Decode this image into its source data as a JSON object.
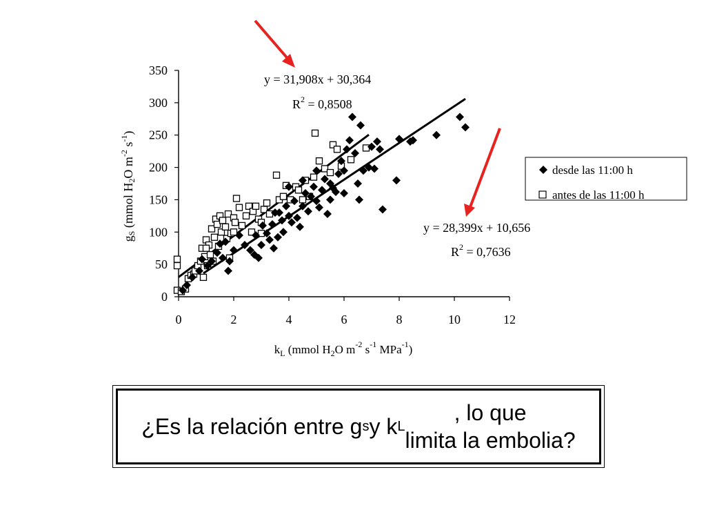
{
  "chart_data": {
    "type": "scatter",
    "xlim": [
      0,
      12
    ],
    "ylim": [
      0,
      350
    ],
    "xticks": [
      "0",
      "2",
      "4",
      "6",
      "8",
      "10",
      "12"
    ],
    "yticks": [
      "0",
      "50",
      "100",
      "150",
      "200",
      "250",
      "300",
      "350"
    ],
    "xlabel_parts": {
      "k": "k",
      "k_sub": "L",
      "pre": " (mmol H",
      "h2o_sub": "2",
      "mid": "O m",
      "m_sup": "-2",
      "s": " s",
      "s_sup": "-1",
      "mpa": " MPa",
      "mpa_sup": "-1",
      "close": ")"
    },
    "ylabel_parts": {
      "g": "g",
      "g_sub": "S",
      "pre": " (mmol H",
      "h2o_sub": "2",
      "mid": "O m",
      "m_sup": "-2",
      "s": " s",
      "s_sup": "-1",
      "close": ")"
    },
    "legend": {
      "desde_label": "desde las 11:00 h",
      "antes_label": "antes de las 11:00 h",
      "placement": "right"
    },
    "equation_antes": {
      "line": "y = 31,908x + 30,364",
      "r2_prefix": "R",
      "r2_sup": "2",
      "r2_value": " = 0,8508"
    },
    "equation_desde": {
      "line": "y = 28,399x + 10,656",
      "r2_prefix": "R",
      "r2_sup": "2",
      "r2_value": " = 0,7636"
    },
    "trendlines": [
      {
        "series": "antes",
        "slope": 31.908,
        "intercept": 30.364,
        "x_range": [
          0,
          6.9
        ]
      },
      {
        "series": "desde",
        "slope": 28.399,
        "intercept": 10.656,
        "x_range": [
          0.9,
          10.4
        ]
      }
    ],
    "series": [
      {
        "marker": "square",
        "points": [
          [
            -0.05,
            10
          ],
          [
            0.1,
            8
          ],
          [
            0.25,
            12
          ],
          [
            0.35,
            28
          ],
          [
            0.45,
            33
          ],
          [
            0.55,
            35
          ],
          [
            0.6,
            40
          ],
          [
            0.7,
            48
          ],
          [
            0.8,
            55
          ],
          [
            0.85,
            75
          ],
          [
            0.9,
            30
          ],
          [
            0.95,
            62
          ],
          [
            1.0,
            88
          ],
          [
            1.05,
            48
          ],
          [
            1.1,
            80
          ],
          [
            1.15,
            65
          ],
          [
            1.2,
            105
          ],
          [
            1.25,
            55
          ],
          [
            1.3,
            92
          ],
          [
            1.35,
            120
          ],
          [
            1.4,
            112
          ],
          [
            1.45,
            78
          ],
          [
            1.5,
            125
          ],
          [
            1.55,
            100
          ],
          [
            1.6,
            118
          ],
          [
            1.7,
            108
          ],
          [
            1.75,
            90
          ],
          [
            1.8,
            128
          ],
          [
            1.85,
            60
          ],
          [
            1.9,
            98
          ],
          [
            2.0,
            122
          ],
          [
            2.05,
            115
          ],
          [
            2.1,
            152
          ],
          [
            2.2,
            138
          ],
          [
            2.3,
            110
          ],
          [
            2.45,
            125
          ],
          [
            2.55,
            140
          ],
          [
            2.65,
            100
          ],
          [
            2.7,
            132
          ],
          [
            2.8,
            140
          ],
          [
            2.9,
            120
          ],
          [
            3.0,
            98
          ],
          [
            3.1,
            135
          ],
          [
            3.2,
            145
          ],
          [
            3.3,
            128
          ],
          [
            3.55,
            188
          ],
          [
            3.65,
            150
          ],
          [
            3.8,
            155
          ],
          [
            3.9,
            172
          ],
          [
            4.05,
            150
          ],
          [
            4.25,
            170
          ],
          [
            4.35,
            165
          ],
          [
            4.5,
            150
          ],
          [
            4.6,
            180
          ],
          [
            4.75,
            155
          ],
          [
            4.9,
            185
          ],
          [
            4.95,
            253
          ],
          [
            5.1,
            210
          ],
          [
            5.3,
            198
          ],
          [
            5.5,
            192
          ],
          [
            5.6,
            235
          ],
          [
            5.75,
            228
          ],
          [
            5.9,
            202
          ],
          [
            6.25,
            212
          ],
          [
            6.8,
            230
          ],
          [
            -0.05,
            48
          ],
          [
            -0.05,
            58
          ],
          [
            1.0,
            75
          ],
          [
            2.0,
            100
          ],
          [
            3.0,
            115
          ]
        ]
      },
      {
        "marker": "diamond",
        "points": [
          [
            0.15,
            10
          ],
          [
            0.3,
            18
          ],
          [
            0.5,
            30
          ],
          [
            0.75,
            40
          ],
          [
            0.85,
            58
          ],
          [
            1.05,
            48
          ],
          [
            1.2,
            55
          ],
          [
            1.4,
            68
          ],
          [
            1.5,
            82
          ],
          [
            1.6,
            60
          ],
          [
            1.7,
            85
          ],
          [
            1.8,
            40
          ],
          [
            1.85,
            55
          ],
          [
            2.0,
            72
          ],
          [
            2.2,
            95
          ],
          [
            2.4,
            80
          ],
          [
            2.6,
            72
          ],
          [
            2.8,
            95
          ],
          [
            2.75,
            65
          ],
          [
            2.9,
            60
          ],
          [
            3.0,
            80
          ],
          [
            3.05,
            110
          ],
          [
            3.2,
            98
          ],
          [
            3.3,
            88
          ],
          [
            3.4,
            112
          ],
          [
            3.45,
            75
          ],
          [
            3.6,
            92
          ],
          [
            3.65,
            130
          ],
          [
            3.75,
            118
          ],
          [
            3.8,
            100
          ],
          [
            3.9,
            140
          ],
          [
            4.0,
            125
          ],
          [
            4.1,
            115
          ],
          [
            4.2,
            148
          ],
          [
            4.3,
            122
          ],
          [
            4.4,
            108
          ],
          [
            4.5,
            140
          ],
          [
            4.6,
            160
          ],
          [
            4.7,
            132
          ],
          [
            4.8,
            155
          ],
          [
            4.9,
            170
          ],
          [
            5.0,
            148
          ],
          [
            5.1,
            138
          ],
          [
            5.2,
            165
          ],
          [
            5.3,
            182
          ],
          [
            5.4,
            128
          ],
          [
            5.5,
            175
          ],
          [
            5.6,
            168
          ],
          [
            5.7,
            162
          ],
          [
            5.8,
            190
          ],
          [
            5.9,
            210
          ],
          [
            6.0,
            195
          ],
          [
            6.1,
            228
          ],
          [
            6.2,
            242
          ],
          [
            6.3,
            278
          ],
          [
            6.4,
            222
          ],
          [
            6.5,
            175
          ],
          [
            6.6,
            265
          ],
          [
            6.55,
            150
          ],
          [
            6.7,
            195
          ],
          [
            6.9,
            200
          ],
          [
            7.0,
            232
          ],
          [
            7.1,
            198
          ],
          [
            7.2,
            240
          ],
          [
            7.3,
            228
          ],
          [
            7.4,
            135
          ],
          [
            7.9,
            180
          ],
          [
            8.0,
            244
          ],
          [
            8.4,
            240
          ],
          [
            8.5,
            242
          ],
          [
            9.35,
            250
          ],
          [
            10.2,
            278
          ],
          [
            10.4,
            262
          ],
          [
            4.0,
            170
          ],
          [
            5.0,
            195
          ],
          [
            3.5,
            130
          ],
          [
            6.0,
            160
          ],
          [
            4.5,
            180
          ],
          [
            5.5,
            150
          ]
        ]
      }
    ]
  }
}
